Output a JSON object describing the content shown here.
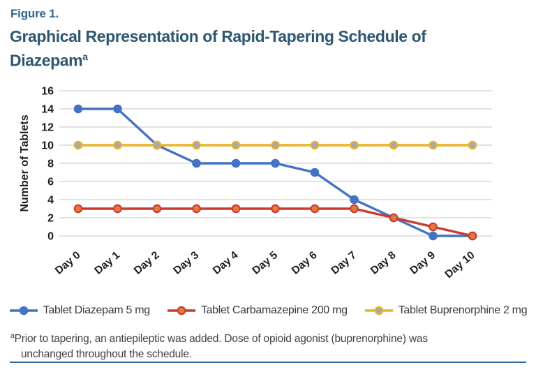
{
  "figure": {
    "label": "Figure 1."
  },
  "title": {
    "line1": "Graphical Representation of Rapid-Tapering Schedule of",
    "line2": "Diazepam",
    "superscript": "a"
  },
  "chart_data": {
    "type": "line",
    "categories": [
      "Day 0",
      "Day 1",
      "Day 2",
      "Day 3",
      "Day 4",
      "Day 5",
      "Day 6",
      "Day 7",
      "Day 8",
      "Day 9",
      "Day 10"
    ],
    "series": [
      {
        "name": "Tablet Diazepam 5 mg",
        "values": [
          14,
          14,
          10,
          8,
          8,
          8,
          7,
          4,
          2,
          0,
          0
        ],
        "line_color": "#4472C4",
        "marker_fill": "#4472C4"
      },
      {
        "name": "Tablet Carbamazepine 200 mg",
        "values": [
          3,
          3,
          3,
          3,
          3,
          3,
          3,
          3,
          2,
          1,
          0
        ],
        "line_color": "#CB3A2C",
        "marker_fill": "#E2793F"
      },
      {
        "name": "Tablet Buprenorphine 2 mg",
        "values": [
          10,
          10,
          10,
          10,
          10,
          10,
          10,
          10,
          10,
          10,
          10
        ],
        "line_color": "#EBB327",
        "marker_fill": "#A9A9A9"
      }
    ],
    "title": "Graphical Representation of Rapid-Tapering Schedule of Diazepam",
    "xlabel": "",
    "ylabel": "Number of Tablets",
    "ylim": [
      0,
      16
    ],
    "yticks": [
      0,
      2,
      4,
      6,
      8,
      10,
      12,
      14,
      16
    ],
    "grid": "horizontal",
    "legend_position": "bottom"
  },
  "footnote": {
    "superscript": "a",
    "line1": "Prior to tapering, an antiepileptic was added. Dose of opioid agonist (buprenorphine) was",
    "line2": "unchanged throughout the schedule."
  },
  "colors": {
    "figure_label": "#33658D",
    "title": "#2E5772",
    "grid": "#D9D9D9",
    "axis_text": "#1D1D1F",
    "legend_text": "#3A3A3C",
    "footnote_text": "#414043",
    "bottom_rule": "#2E6DA4"
  }
}
